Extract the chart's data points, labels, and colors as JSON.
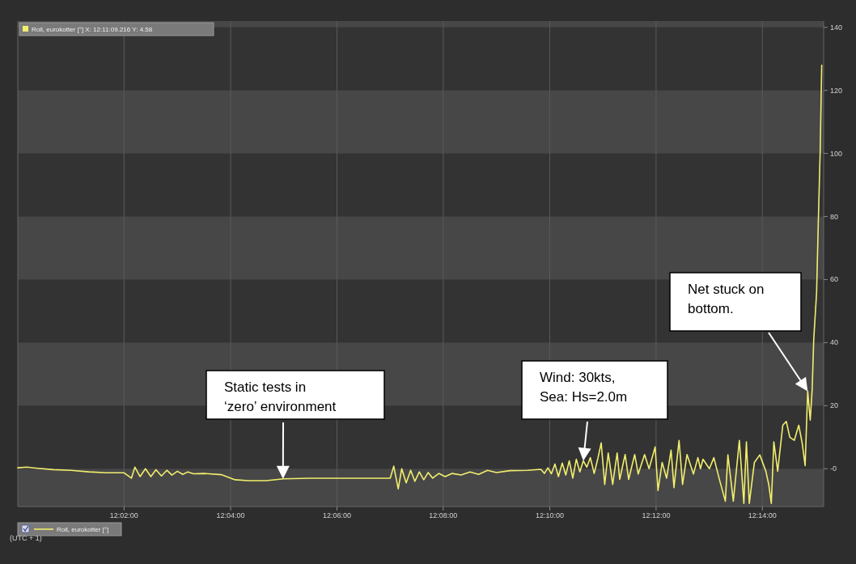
{
  "chart_data": {
    "type": "line",
    "xlabel": "(UTC + 1)",
    "xlim": [
      12.0,
      12.2525
    ],
    "ylim": [
      -12,
      142
    ],
    "xticks": [
      {
        "value": 12.0333,
        "label": "12:02:00"
      },
      {
        "value": 12.0667,
        "label": "12:04:00"
      },
      {
        "value": 12.1,
        "label": "12:06:00"
      },
      {
        "value": 12.1333,
        "label": "12:08:00"
      },
      {
        "value": 12.1667,
        "label": "12:10:00"
      },
      {
        "value": 12.2,
        "label": "12:12:00"
      },
      {
        "value": 12.2333,
        "label": "12:14:00"
      }
    ],
    "yticks": [
      {
        "value": 0,
        "label": "-0"
      },
      20,
      40,
      60,
      80,
      100,
      120,
      140
    ],
    "grid": "x",
    "legend": "bottom left",
    "marker": "none",
    "line_style": "solid",
    "bands": [
      {
        "axis": "y",
        "from": -12,
        "to": 0,
        "color": "#474747"
      },
      {
        "axis": "y",
        "from": 20,
        "to": 40,
        "color": "#474747"
      },
      {
        "axis": "y",
        "from": 60,
        "to": 80,
        "color": "#474747"
      },
      {
        "axis": "y",
        "from": 100,
        "to": 120,
        "color": "#474747"
      },
      {
        "axis": "y",
        "from": 140,
        "to": 142,
        "color": "#474747"
      }
    ],
    "annotations": [
      "Roll, eurokotter [°] X: 12:11:09.216 Y: 4.58",
      {
        "text": "Static tests in ‘zero’ environment",
        "x": 12.0831,
        "y": -3.2
      },
      {
        "text": "Wind: 30kts, Sea: Hs=2.0m",
        "x": 12.1772,
        "y": 2.5
      },
      {
        "text": "Net stuck on bottom.",
        "x": 12.2475,
        "y": 24.6
      }
    ],
    "series": [
      {
        "name": "Roll, eurokotter [°]",
        "color": "#f2ee6e",
        "x": [
          12.0,
          12.0028,
          12.0056,
          12.0111,
          12.0167,
          12.0222,
          12.0278,
          12.0333,
          12.0356,
          12.0367,
          12.0383,
          12.04,
          12.0417,
          12.0433,
          12.045,
          12.0467,
          12.0483,
          12.05,
          12.0517,
          12.0533,
          12.055,
          12.0583,
          12.0639,
          12.0681,
          12.0722,
          12.0778,
          12.0833,
          12.0917,
          12.1167,
          12.1178,
          12.1192,
          12.1203,
          12.1217,
          12.1231,
          12.1244,
          12.1258,
          12.1272,
          12.1286,
          12.13,
          12.1319,
          12.1339,
          12.1361,
          12.1389,
          12.1417,
          12.1444,
          12.1472,
          12.15,
          12.1542,
          12.1597,
          12.1639,
          12.165,
          12.1661,
          12.1672,
          12.1683,
          12.1694,
          12.1706,
          12.1717,
          12.1728,
          12.1739,
          12.175,
          12.1761,
          12.1772,
          12.1783,
          12.1794,
          12.1806,
          12.1817,
          12.1828,
          12.1839,
          12.185,
          12.1864,
          12.1878,
          12.1886,
          12.1903,
          12.1914,
          12.1933,
          12.1944,
          12.1964,
          12.1978,
          12.1997,
          12.2006,
          12.2019,
          12.2033,
          12.2047,
          12.2056,
          12.2072,
          12.2083,
          12.2097,
          12.2117,
          12.2131,
          12.2139,
          12.2147,
          12.2167,
          12.2181,
          12.22,
          12.2217,
          12.2225,
          12.2242,
          12.2261,
          12.2275,
          12.2283,
          12.2292,
          12.2308,
          12.2325,
          12.2344,
          12.2353,
          12.2361,
          12.2369,
          12.2381,
          12.2397,
          12.2408,
          12.2419,
          12.2433,
          12.2447,
          12.2458,
          12.2467,
          12.2475,
          12.2483,
          12.2489,
          12.2494,
          12.2503,
          12.2508,
          12.2514,
          12.2519
        ],
        "values": [
          0.3,
          0.5,
          0.2,
          -0.3,
          -0.5,
          -1.0,
          -1.3,
          -1.3,
          -3,
          0.5,
          -2.5,
          0,
          -2.5,
          -0.3,
          -2.3,
          -0.5,
          -2.0,
          -0.8,
          -1.8,
          -1.0,
          -1.6,
          -1.5,
          -1.9,
          -3.5,
          -3.8,
          -3.8,
          -3.2,
          -3.0,
          -3.0,
          0.8,
          -6.4,
          0,
          -4.5,
          -0.5,
          -4,
          -1,
          -3.5,
          -1.2,
          -3,
          -1.5,
          -2.5,
          -1.5,
          -2,
          -1,
          -1.8,
          -0.5,
          -1.2,
          -0.6,
          -0.5,
          -0.2,
          -1.5,
          0.3,
          -1.6,
          1.5,
          -2.5,
          1.8,
          -2,
          2.5,
          -3,
          3,
          -1,
          2.5,
          0.5,
          3.5,
          -1.5,
          3,
          8.2,
          -5,
          5,
          -5,
          5,
          -3.4,
          4.5,
          -3.4,
          4.5,
          -1.7,
          4.5,
          0,
          6.9,
          -6.9,
          2,
          -3,
          5.9,
          -6,
          9,
          -5,
          4.5,
          -1.7,
          3.5,
          0,
          3,
          0,
          3.5,
          -4,
          -10.3,
          4.4,
          -10.3,
          9,
          -11,
          8.5,
          -11,
          2,
          4.4,
          -0.8,
          -5,
          -11,
          8.5,
          -0.8,
          13.8,
          15,
          10,
          9,
          13.8,
          8,
          1,
          24.6,
          15.4,
          25,
          41,
          56,
          77,
          100,
          128
        ]
      }
    ]
  }
}
